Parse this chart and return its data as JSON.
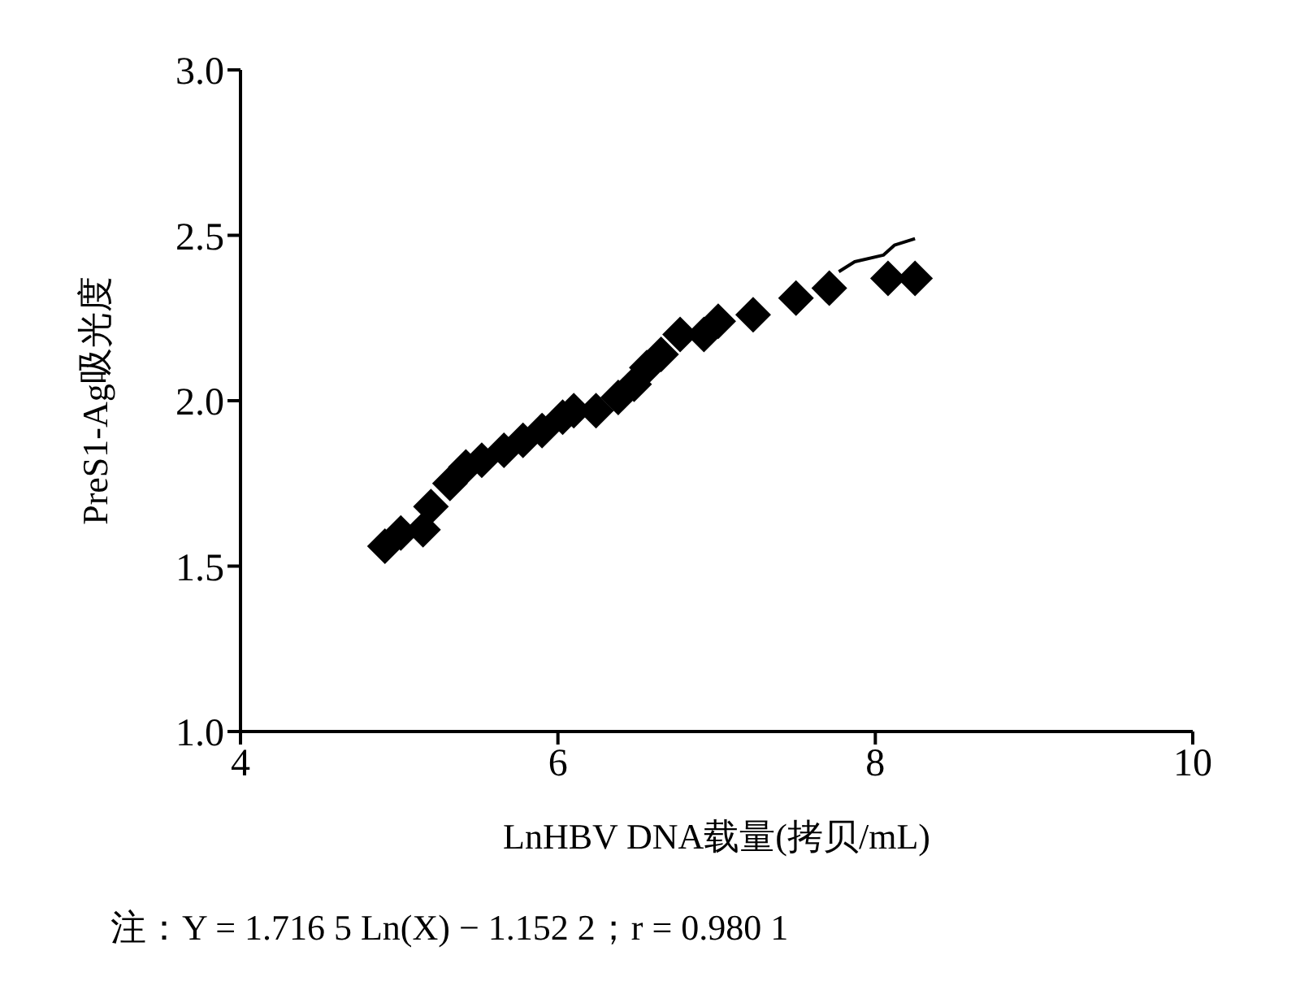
{
  "chart_data": {
    "type": "scatter",
    "xlabel": "LnHBV DNA载量(拷贝/mL)",
    "ylabel": "PreS1-Ag吸光度",
    "annotations": [
      "注：Y = 1.716 5 Ln(X) − 1.152 2；r = 0.980 1"
    ],
    "xlim": [
      4,
      10
    ],
    "xticks": [
      4,
      6,
      8,
      10
    ],
    "ylim": [
      1,
      3
    ],
    "yticks": [
      {
        "value": 1,
        "label": "1.0"
      },
      {
        "value": 1.5,
        "label": "1.5"
      },
      {
        "value": 2,
        "label": "2.0"
      },
      {
        "value": 2.5,
        "label": "2.5"
      },
      {
        "value": 3,
        "label": "3.0"
      }
    ],
    "grid": false,
    "legend": false,
    "marker": "diamond",
    "series": [
      {
        "color": "#000000",
        "x": [
          4.91,
          5.01,
          5.15,
          5.2,
          5.32,
          5.42,
          5.52,
          5.66,
          5.78,
          5.9,
          6.03,
          6.1,
          6.24,
          6.38,
          6.48,
          6.56,
          6.65,
          6.77,
          6.92,
          7.01,
          7.23,
          7.5,
          7.71,
          8.08,
          8.25
        ],
        "values": [
          1.56,
          1.6,
          1.61,
          1.68,
          1.75,
          1.8,
          1.82,
          1.85,
          1.88,
          1.91,
          1.95,
          1.97,
          1.97,
          2.01,
          2.05,
          2.1,
          2.14,
          2.2,
          2.2,
          2.24,
          2.26,
          2.31,
          2.34,
          2.37,
          2.37
        ]
      },
      {
        "type": "line",
        "color": "#000000",
        "marker": "none",
        "x": [
          7.77,
          7.87,
          8.05,
          8.12,
          8.25
        ],
        "values": [
          2.39,
          2.42,
          2.44,
          2.47,
          2.49
        ]
      }
    ]
  }
}
